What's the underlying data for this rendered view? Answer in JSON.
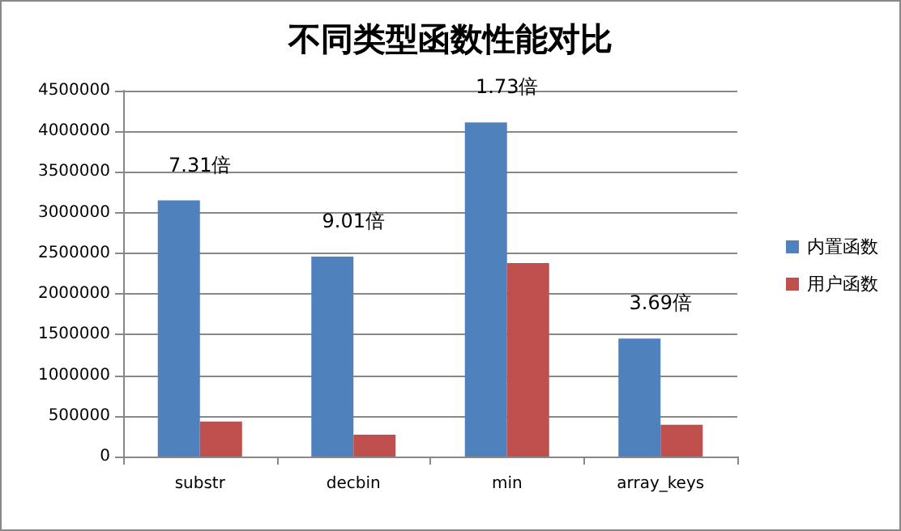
{
  "chart_data": {
    "type": "bar",
    "title": "不同类型函数性能对比",
    "categories": [
      "substr",
      "decbin",
      "min",
      "array_keys"
    ],
    "series": [
      {
        "name": "内置函数",
        "color": "#4f81bd",
        "values": [
          3150000,
          2460000,
          4110000,
          1450000
        ]
      },
      {
        "name": "用户函数",
        "color": "#c0504d",
        "values": [
          430000,
          270000,
          2380000,
          390000
        ]
      }
    ],
    "ylim": [
      0,
      4500000
    ],
    "yticks": [
      0,
      500000,
      1000000,
      1500000,
      2000000,
      2500000,
      3000000,
      3500000,
      4000000,
      4500000
    ],
    "grid": "y",
    "legend": "right",
    "annotations": [
      "7.31倍",
      "9.01倍",
      "1.73倍",
      "3.69倍"
    ]
  }
}
